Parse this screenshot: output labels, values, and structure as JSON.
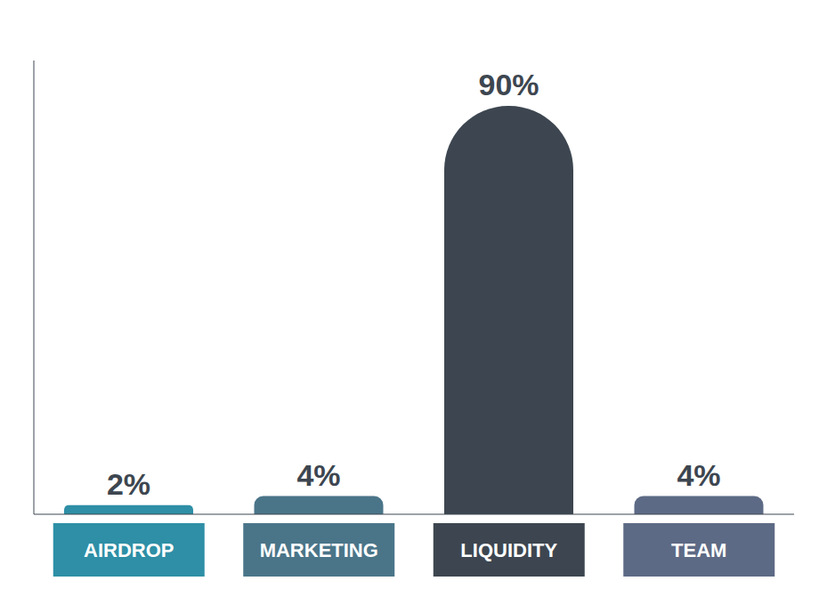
{
  "chart_data": {
    "type": "bar",
    "categories": [
      "AIRDROP",
      "MARKETING",
      "LIQUIDITY",
      "TEAM"
    ],
    "values": [
      2,
      4,
      90,
      4
    ],
    "value_labels": [
      "2%",
      "4%",
      "90%",
      "4%"
    ],
    "colors": [
      "#2e8fa6",
      "#4a7589",
      "#3d4650",
      "#5d6a85"
    ],
    "ylim": [
      0,
      100
    ],
    "data_labels": true,
    "tick_labels": "x",
    "grid": false
  }
}
